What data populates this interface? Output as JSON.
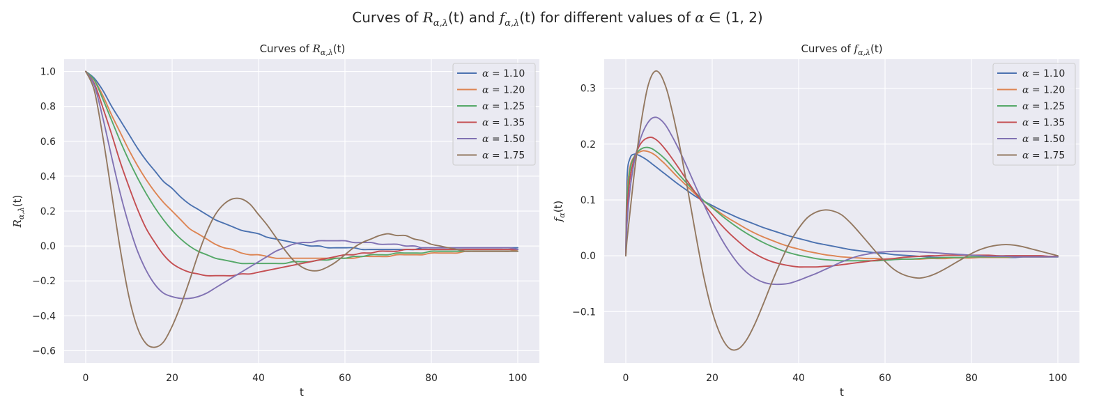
{
  "figure": {
    "suptitle_prefix": "Curves of ",
    "suptitle_R": "R",
    "suptitle_sub": "α,λ",
    "suptitle_t": "(t)",
    "suptitle_and": " and ",
    "suptitle_f": "f",
    "suptitle_tail": " for different values of ",
    "suptitle_alpha": "α",
    "suptitle_in": " ∈ (1, 2)"
  },
  "colors": [
    "#4c72b0",
    "#dd8452",
    "#55a868",
    "#c44e52",
    "#8172b3",
    "#937860"
  ],
  "chart_data": [
    {
      "type": "line",
      "title_prefix": "Curves of ",
      "title_sym": "R",
      "title_sub": "α,λ",
      "title_arg": "(t)",
      "xlabel": "t",
      "ylabel_sym": "R",
      "ylabel_sub": "α,λ",
      "ylabel_arg": "(t)",
      "xlim": [
        -5,
        105
      ],
      "ylim": [
        -0.67,
        1.07
      ],
      "xticks": [
        0,
        20,
        40,
        60,
        80,
        100
      ],
      "yticks": [
        -0.6,
        -0.4,
        -0.2,
        0.0,
        0.2,
        0.4,
        0.6,
        0.8,
        1.0
      ],
      "ytick_labels": [
        "−0.6",
        "−0.4",
        "−0.2",
        "0.0",
        "0.2",
        "0.4",
        "0.6",
        "0.8",
        "1.0"
      ],
      "legend_loc": "upper right",
      "x": [
        0,
        2,
        4,
        6,
        8,
        10,
        12,
        14,
        16,
        18,
        20,
        22,
        24,
        26,
        28,
        30,
        32,
        34,
        36,
        38,
        40,
        42,
        44,
        46,
        48,
        50,
        52,
        54,
        56,
        58,
        60,
        62,
        64,
        66,
        68,
        70,
        72,
        74,
        76,
        78,
        80,
        82,
        84,
        86,
        88,
        90,
        92,
        94,
        96,
        98,
        100
      ],
      "series": [
        {
          "name": "α = 1.10",
          "alpha": "α",
          "eq": " = 1.10",
          "values": [
            1.0,
            0.96,
            0.89,
            0.8,
            0.72,
            0.64,
            0.56,
            0.49,
            0.43,
            0.37,
            0.33,
            0.28,
            0.24,
            0.21,
            0.18,
            0.15,
            0.13,
            0.11,
            0.09,
            0.08,
            0.07,
            0.05,
            0.04,
            0.03,
            0.02,
            0.01,
            0.0,
            -0.0,
            -0.01,
            -0.01,
            -0.01,
            -0.01,
            -0.02,
            -0.02,
            -0.02,
            -0.02,
            -0.02,
            -0.02,
            -0.02,
            -0.01,
            -0.01,
            -0.01,
            -0.01,
            -0.01,
            -0.01,
            -0.01,
            -0.01,
            -0.01,
            -0.01,
            -0.01,
            -0.01
          ]
        },
        {
          "name": "α = 1.20",
          "alpha": "α",
          "eq": " = 1.20",
          "values": [
            1.0,
            0.95,
            0.86,
            0.75,
            0.65,
            0.55,
            0.46,
            0.38,
            0.31,
            0.25,
            0.2,
            0.15,
            0.1,
            0.07,
            0.04,
            0.01,
            -0.01,
            -0.02,
            -0.04,
            -0.05,
            -0.05,
            -0.06,
            -0.07,
            -0.07,
            -0.07,
            -0.07,
            -0.07,
            -0.07,
            -0.07,
            -0.07,
            -0.07,
            -0.07,
            -0.06,
            -0.06,
            -0.06,
            -0.06,
            -0.05,
            -0.05,
            -0.05,
            -0.05,
            -0.04,
            -0.04,
            -0.04,
            -0.04,
            -0.03,
            -0.03,
            -0.03,
            -0.03,
            -0.03,
            -0.03,
            -0.02
          ]
        },
        {
          "name": "α = 1.25",
          "alpha": "α",
          "eq": " = 1.25",
          "values": [
            1.0,
            0.95,
            0.84,
            0.72,
            0.6,
            0.49,
            0.39,
            0.3,
            0.22,
            0.15,
            0.09,
            0.04,
            0.0,
            -0.03,
            -0.05,
            -0.07,
            -0.08,
            -0.09,
            -0.1,
            -0.1,
            -0.1,
            -0.1,
            -0.1,
            -0.1,
            -0.09,
            -0.09,
            -0.09,
            -0.08,
            -0.08,
            -0.07,
            -0.07,
            -0.06,
            -0.06,
            -0.05,
            -0.05,
            -0.05,
            -0.04,
            -0.04,
            -0.04,
            -0.04,
            -0.03,
            -0.03,
            -0.03,
            -0.03,
            -0.03,
            -0.03,
            -0.03,
            -0.03,
            -0.03,
            -0.03,
            -0.03
          ]
        },
        {
          "name": "α = 1.35",
          "alpha": "α",
          "eq": " = 1.35",
          "values": [
            1.0,
            0.93,
            0.79,
            0.64,
            0.48,
            0.34,
            0.21,
            0.1,
            0.02,
            -0.05,
            -0.1,
            -0.13,
            -0.15,
            -0.16,
            -0.17,
            -0.17,
            -0.17,
            -0.17,
            -0.16,
            -0.16,
            -0.15,
            -0.14,
            -0.13,
            -0.12,
            -0.11,
            -0.1,
            -0.09,
            -0.08,
            -0.07,
            -0.06,
            -0.05,
            -0.05,
            -0.04,
            -0.04,
            -0.03,
            -0.03,
            -0.03,
            -0.02,
            -0.02,
            -0.02,
            -0.02,
            -0.02,
            -0.02,
            -0.02,
            -0.02,
            -0.02,
            -0.02,
            -0.02,
            -0.02,
            -0.02,
            -0.02
          ]
        },
        {
          "name": "α = 1.50",
          "alpha": "α",
          "eq": " = 1.50",
          "values": [
            1.0,
            0.92,
            0.73,
            0.51,
            0.3,
            0.12,
            -0.03,
            -0.14,
            -0.22,
            -0.27,
            -0.29,
            -0.3,
            -0.3,
            -0.29,
            -0.27,
            -0.24,
            -0.21,
            -0.18,
            -0.15,
            -0.12,
            -0.09,
            -0.06,
            -0.03,
            -0.01,
            0.01,
            0.02,
            0.02,
            0.03,
            0.03,
            0.03,
            0.03,
            0.02,
            0.02,
            0.02,
            0.01,
            0.01,
            0.01,
            0.0,
            -0.0,
            -0.01,
            -0.01,
            -0.01,
            -0.01,
            -0.01,
            -0.01,
            -0.01,
            -0.01,
            -0.01,
            -0.01,
            -0.01,
            -0.02
          ]
        },
        {
          "name": "α = 1.75",
          "alpha": "α",
          "eq": " = 1.75",
          "values": [
            1.0,
            0.89,
            0.62,
            0.3,
            -0.02,
            -0.29,
            -0.47,
            -0.56,
            -0.58,
            -0.55,
            -0.46,
            -0.34,
            -0.2,
            -0.05,
            0.08,
            0.18,
            0.24,
            0.27,
            0.27,
            0.24,
            0.18,
            0.12,
            0.05,
            -0.02,
            -0.08,
            -0.12,
            -0.14,
            -0.14,
            -0.12,
            -0.09,
            -0.05,
            -0.01,
            0.02,
            0.04,
            0.06,
            0.07,
            0.06,
            0.06,
            0.04,
            0.03,
            0.01,
            -0.0,
            -0.01,
            -0.02,
            -0.03,
            -0.03,
            -0.03,
            -0.03,
            -0.03,
            -0.03,
            -0.03
          ]
        }
      ]
    },
    {
      "type": "line",
      "title_prefix": "Curves of ",
      "title_sym": "f",
      "title_sub": "α,λ",
      "title_arg": "(t)",
      "xlabel": "t",
      "ylabel_sym": "f",
      "ylabel_sub": "α",
      "ylabel_arg": "(t)",
      "xlim": [
        -5,
        105
      ],
      "ylim": [
        -0.192,
        0.352
      ],
      "xticks": [
        0,
        20,
        40,
        60,
        80,
        100
      ],
      "yticks": [
        -0.1,
        0.0,
        0.1,
        0.2,
        0.3
      ],
      "ytick_labels": [
        "−0.1",
        "0.0",
        "0.1",
        "0.2",
        "0.3"
      ],
      "legend_loc": "upper right",
      "x": [
        0,
        0.3,
        1,
        2,
        3,
        4,
        5,
        6,
        7,
        8,
        9,
        10,
        12,
        14,
        16,
        18,
        20,
        22,
        24,
        26,
        28,
        30,
        32,
        34,
        36,
        38,
        40,
        42,
        44,
        46,
        48,
        50,
        52,
        54,
        56,
        58,
        60,
        62,
        64,
        66,
        68,
        70,
        72,
        74,
        76,
        78,
        80,
        82,
        84,
        86,
        88,
        90,
        92,
        94,
        96,
        98,
        100
      ],
      "series": [
        {
          "name": "α = 1.10",
          "alpha": "α",
          "eq": " = 1.10",
          "values": [
            0.0,
            0.14,
            0.175,
            0.182,
            0.18,
            0.176,
            0.171,
            0.165,
            0.159,
            0.153,
            0.147,
            0.141,
            0.129,
            0.118,
            0.107,
            0.098,
            0.09,
            0.082,
            0.075,
            0.068,
            0.062,
            0.056,
            0.05,
            0.045,
            0.04,
            0.035,
            0.031,
            0.027,
            0.023,
            0.02,
            0.017,
            0.014,
            0.011,
            0.009,
            0.007,
            0.005,
            0.004,
            0.002,
            0.001,
            0.0,
            -0.001,
            -0.002,
            -0.003,
            -0.003,
            -0.003,
            -0.003,
            -0.003,
            -0.003,
            -0.003,
            -0.003,
            -0.003,
            -0.003,
            -0.002,
            -0.002,
            -0.002,
            -0.002,
            -0.002
          ]
        },
        {
          "name": "α = 1.20",
          "alpha": "α",
          "eq": " = 1.20",
          "values": [
            0.0,
            0.11,
            0.16,
            0.178,
            0.185,
            0.188,
            0.187,
            0.184,
            0.179,
            0.172,
            0.165,
            0.157,
            0.141,
            0.126,
            0.111,
            0.098,
            0.087,
            0.076,
            0.066,
            0.057,
            0.048,
            0.04,
            0.033,
            0.027,
            0.021,
            0.016,
            0.012,
            0.008,
            0.005,
            0.002,
            0.0,
            -0.002,
            -0.003,
            -0.004,
            -0.005,
            -0.005,
            -0.006,
            -0.006,
            -0.006,
            -0.006,
            -0.006,
            -0.005,
            -0.005,
            -0.005,
            -0.004,
            -0.004,
            -0.004,
            -0.003,
            -0.003,
            -0.003,
            -0.003,
            -0.002,
            -0.002,
            -0.002,
            -0.002,
            -0.002,
            -0.001
          ]
        },
        {
          "name": "α = 1.25",
          "alpha": "α",
          "eq": " = 1.25",
          "values": [
            0.0,
            0.1,
            0.155,
            0.178,
            0.188,
            0.193,
            0.194,
            0.192,
            0.187,
            0.181,
            0.174,
            0.166,
            0.148,
            0.131,
            0.114,
            0.099,
            0.086,
            0.073,
            0.061,
            0.05,
            0.04,
            0.031,
            0.023,
            0.016,
            0.01,
            0.005,
            0.001,
            -0.002,
            -0.005,
            -0.007,
            -0.008,
            -0.009,
            -0.009,
            -0.009,
            -0.009,
            -0.009,
            -0.008,
            -0.007,
            -0.006,
            -0.006,
            -0.005,
            -0.004,
            -0.004,
            -0.003,
            -0.003,
            -0.003,
            -0.002,
            -0.002,
            -0.002,
            -0.002,
            -0.002,
            -0.002,
            -0.002,
            -0.002,
            -0.002,
            -0.002,
            -0.002
          ]
        },
        {
          "name": "α = 1.35",
          "alpha": "α",
          "eq": " = 1.35",
          "values": [
            0.0,
            0.08,
            0.14,
            0.175,
            0.195,
            0.206,
            0.211,
            0.212,
            0.208,
            0.201,
            0.192,
            0.182,
            0.16,
            0.137,
            0.114,
            0.093,
            0.074,
            0.056,
            0.04,
            0.026,
            0.013,
            0.003,
            -0.005,
            -0.011,
            -0.015,
            -0.018,
            -0.02,
            -0.02,
            -0.02,
            -0.019,
            -0.018,
            -0.016,
            -0.014,
            -0.012,
            -0.01,
            -0.008,
            -0.006,
            -0.005,
            -0.003,
            -0.002,
            -0.001,
            0.0,
            0.0,
            0.001,
            0.001,
            0.001,
            0.001,
            0.001,
            0.001,
            0.0,
            0.0,
            0.0,
            0.0,
            0.0,
            0.0,
            -0.001,
            -0.001
          ]
        },
        {
          "name": "α = 1.50",
          "alpha": "α",
          "eq": " = 1.50",
          "values": [
            0.0,
            0.06,
            0.12,
            0.17,
            0.2,
            0.222,
            0.237,
            0.246,
            0.248,
            0.244,
            0.236,
            0.224,
            0.195,
            0.162,
            0.127,
            0.093,
            0.061,
            0.032,
            0.007,
            -0.014,
            -0.03,
            -0.041,
            -0.048,
            -0.051,
            -0.051,
            -0.049,
            -0.044,
            -0.038,
            -0.032,
            -0.025,
            -0.018,
            -0.011,
            -0.005,
            0.0,
            0.003,
            0.006,
            0.007,
            0.008,
            0.008,
            0.008,
            0.007,
            0.006,
            0.005,
            0.004,
            0.003,
            0.002,
            0.001,
            0.0,
            -0.001,
            -0.001,
            -0.001,
            -0.002,
            -0.002,
            -0.002,
            -0.002,
            -0.002,
            -0.002
          ]
        },
        {
          "name": "α = 1.75",
          "alpha": "α",
          "eq": " = 1.75",
          "values": [
            0.0,
            0.03,
            0.08,
            0.15,
            0.21,
            0.26,
            0.3,
            0.323,
            0.331,
            0.325,
            0.308,
            0.283,
            0.215,
            0.133,
            0.046,
            -0.036,
            -0.1,
            -0.143,
            -0.166,
            -0.167,
            -0.15,
            -0.12,
            -0.083,
            -0.044,
            -0.008,
            0.024,
            0.049,
            0.068,
            0.078,
            0.082,
            0.08,
            0.073,
            0.059,
            0.042,
            0.024,
            0.006,
            -0.01,
            -0.024,
            -0.033,
            -0.038,
            -0.04,
            -0.037,
            -0.031,
            -0.023,
            -0.014,
            -0.005,
            0.004,
            0.011,
            0.016,
            0.019,
            0.02,
            0.019,
            0.016,
            0.012,
            0.008,
            0.004,
            0.0
          ]
        }
      ]
    }
  ]
}
